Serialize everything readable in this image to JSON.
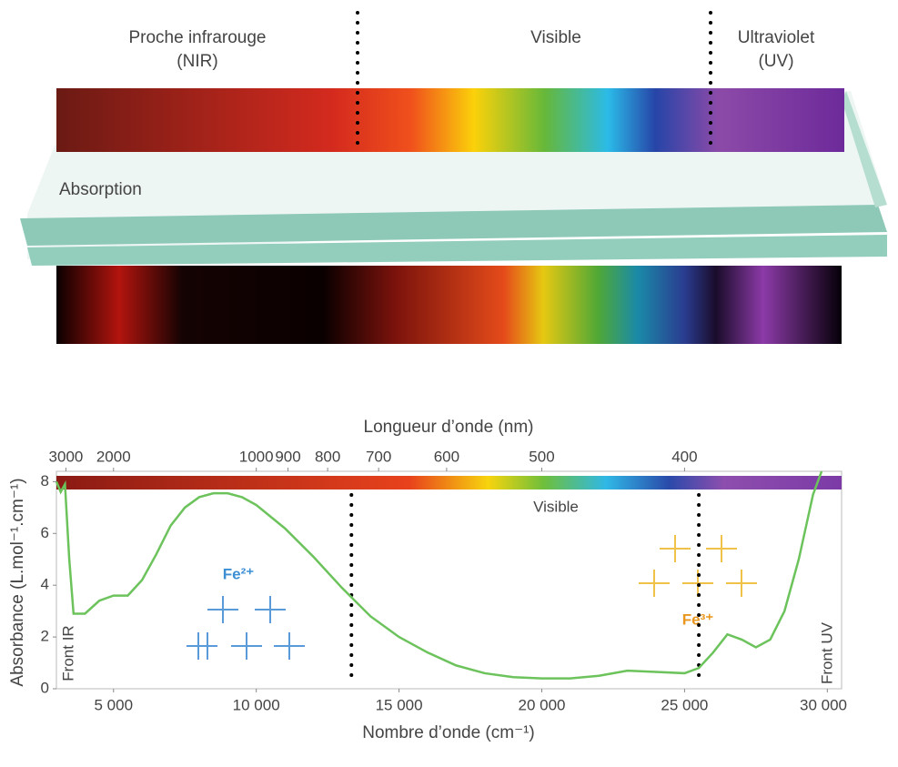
{
  "illustration": {
    "labels": {
      "nir": [
        "Proche infrarouge",
        "(NIR)"
      ],
      "visible": [
        "Visible"
      ],
      "uv": [
        "Ultraviolet",
        "(UV)"
      ],
      "absorption": [
        "Absorption"
      ]
    }
  },
  "chart_data": {
    "type": "line",
    "x_label": "Nombre d’onde (cm⁻¹)",
    "x2_label": "Longueur d’onde (nm)",
    "y_label": "Absorbance (L.mol⁻¹.cm⁻¹)",
    "band_label": "Visible",
    "annotations": [
      "Front IR",
      "Front UV",
      "Fe²⁺",
      "Fe³⁺"
    ],
    "boundaries": [
      13333,
      25500
    ],
    "color": "#6cc35c",
    "x": [
      3000,
      3150,
      3300,
      3450,
      3600,
      4000,
      4500,
      5000,
      5500,
      6000,
      6500,
      7000,
      7500,
      8000,
      8500,
      9000,
      9500,
      10000,
      11000,
      12000,
      13000,
      14000,
      15000,
      16000,
      17000,
      18000,
      19000,
      20000,
      21000,
      22000,
      23000,
      24000,
      25000,
      25500,
      26000,
      26500,
      27000,
      27500,
      28000,
      28500,
      29000,
      29500,
      29800
    ],
    "values": [
      8.0,
      7.6,
      7.9,
      5.0,
      2.9,
      2.9,
      3.4,
      3.6,
      3.6,
      4.2,
      5.2,
      6.3,
      7.0,
      7.4,
      7.55,
      7.55,
      7.4,
      7.1,
      6.2,
      5.1,
      3.9,
      2.8,
      2.0,
      1.4,
      0.9,
      0.6,
      0.45,
      0.4,
      0.4,
      0.5,
      0.7,
      0.65,
      0.6,
      0.8,
      1.4,
      2.1,
      1.9,
      1.6,
      1.9,
      3.0,
      5.0,
      7.5,
      8.4
    ],
    "xlim": [
      3000,
      30500
    ],
    "xticks": [
      {
        "value": 5000,
        "label": "5 000"
      },
      {
        "value": 10000,
        "label": "10 000"
      },
      {
        "value": 15000,
        "label": "15 000"
      },
      {
        "value": 20000,
        "label": "20 000"
      },
      {
        "value": 25000,
        "label": "25 000"
      },
      {
        "value": 30000,
        "label": "30 000"
      }
    ],
    "x2scale": "reciprocal",
    "x2ticks": [
      3000,
      2000,
      1000,
      900,
      800,
      700,
      600,
      500,
      400
    ],
    "ylim": [
      0,
      8.4
    ],
    "yticks": [
      0,
      2,
      4,
      6,
      8
    ]
  }
}
